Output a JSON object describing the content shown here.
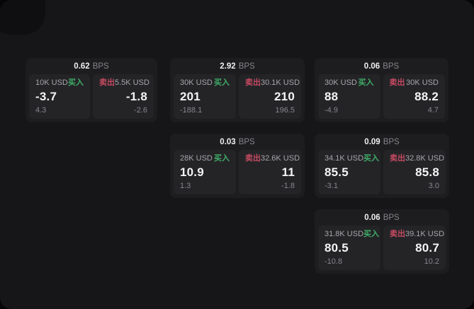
{
  "labels": {
    "bps": "BPS",
    "buy": "买入",
    "sell": "卖出"
  },
  "colors": {
    "buy_accent": "#3fae68",
    "sell_accent": "#c64a61",
    "page_bg": "#161618",
    "card_bg": "#1d1d1f",
    "panel_bg": "#242427"
  },
  "cards": [
    {
      "bps": "0.62",
      "buy": {
        "amount": "10K USD",
        "price": "-3.7",
        "delta": "4.3"
      },
      "sell": {
        "amount": "5.5K USD",
        "price": "-1.8",
        "delta": "-2.6"
      }
    },
    {
      "bps": "2.92",
      "buy": {
        "amount": "30K USD",
        "price": "201",
        "delta": "-188.1"
      },
      "sell": {
        "amount": "30.1K USD",
        "price": "210",
        "delta": "196.5"
      }
    },
    {
      "bps": "0.06",
      "buy": {
        "amount": "30K USD",
        "price": "88",
        "delta": "-4.9"
      },
      "sell": {
        "amount": "30K USD",
        "price": "88.2",
        "delta": "4.7"
      }
    },
    {
      "bps": "0.03",
      "buy": {
        "amount": "28K USD",
        "price": "10.9",
        "delta": "1.3"
      },
      "sell": {
        "amount": "32.6K USD",
        "price": "11",
        "delta": "-1.8"
      }
    },
    {
      "bps": "0.09",
      "buy": {
        "amount": "34.1K USD",
        "price": "85.5",
        "delta": "-3.1"
      },
      "sell": {
        "amount": "32.8K USD",
        "price": "85.8",
        "delta": "3.0"
      }
    },
    {
      "bps": "0.06",
      "buy": {
        "amount": "31.8K USD",
        "price": "80.5",
        "delta": "-10.8"
      },
      "sell": {
        "amount": "39.1K USD",
        "price": "80.7",
        "delta": "10.2"
      }
    }
  ]
}
